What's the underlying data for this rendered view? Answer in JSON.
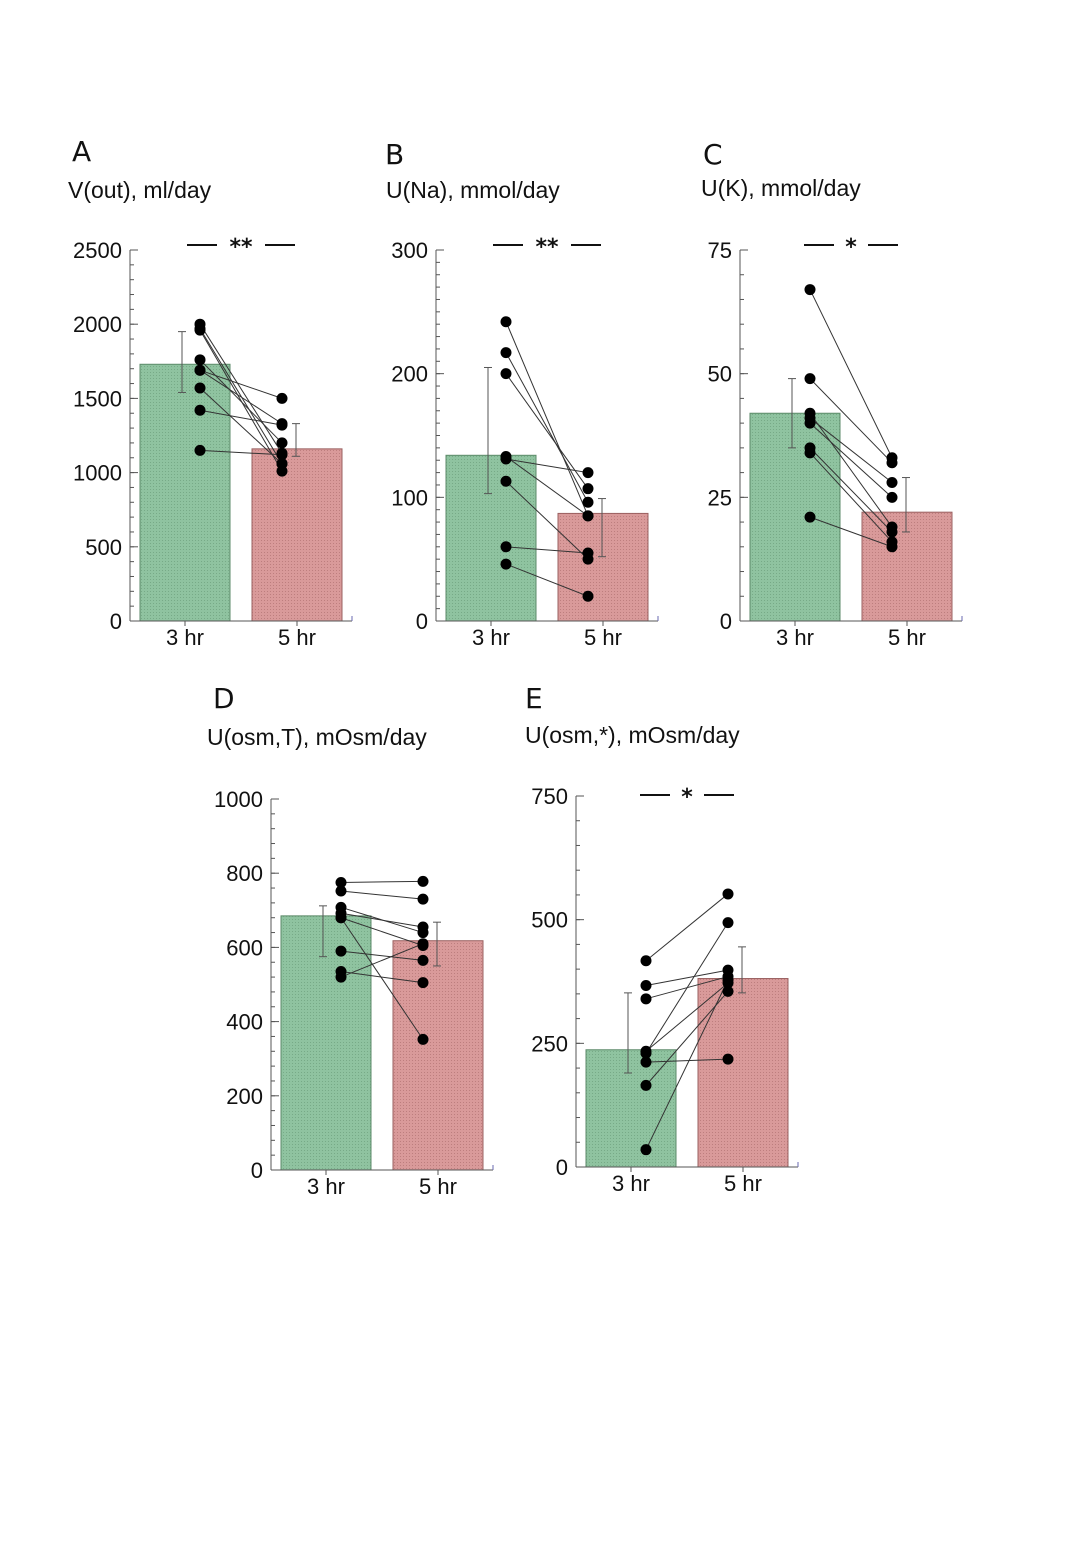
{
  "figure": {
    "colors": {
      "bar_3hr": "#8fc3a0",
      "bar_5hr": "#d99a9a",
      "bar_edge_3hr": "#5b8a68",
      "bar_edge_5hr": "#9a6060",
      "point": "#000000",
      "line": "#333333",
      "axis": "#555555",
      "axis_end": "#6a6ab0"
    }
  },
  "chart_data": [
    {
      "panel": "A",
      "type": "bar",
      "title": "V(out), ml/day",
      "categories": [
        "3 hr",
        "5 hr"
      ],
      "values": [
        1730,
        1160
      ],
      "error": [
        [
          1540,
          1950
        ],
        [
          1110,
          1330
        ]
      ],
      "ylim": [
        0,
        2500
      ],
      "yticks": [
        0,
        500,
        1000,
        1500,
        2000,
        2500
      ],
      "minor_step": 100,
      "significance": "**",
      "pairs": [
        [
          2000,
          1130
        ],
        [
          1960,
          1010
        ],
        [
          1970,
          1060
        ],
        [
          1760,
          1200
        ],
        [
          1690,
          1330
        ],
        [
          1570,
          1060
        ],
        [
          1420,
          1320
        ],
        [
          1150,
          1120
        ],
        [
          1690,
          1500
        ]
      ]
    },
    {
      "panel": "B",
      "type": "bar",
      "title": "U(Na), mmol/day",
      "categories": [
        "3 hr",
        "5 hr"
      ],
      "values": [
        134,
        87
      ],
      "error": [
        [
          103,
          205
        ],
        [
          52,
          99
        ]
      ],
      "ylim": [
        0,
        300
      ],
      "yticks": [
        0,
        100,
        200,
        300
      ],
      "minor_step": 10,
      "significance": "**",
      "pairs": [
        [
          242,
          85
        ],
        [
          217,
          96
        ],
        [
          200,
          107
        ],
        [
          133,
          85
        ],
        [
          131,
          120
        ],
        [
          113,
          50
        ],
        [
          60,
          55
        ],
        [
          46,
          20
        ]
      ]
    },
    {
      "panel": "C",
      "type": "bar",
      "title": "U(K), mmol/day",
      "categories": [
        "3 hr",
        "5 hr"
      ],
      "values": [
        42,
        22
      ],
      "error": [
        [
          35,
          49
        ],
        [
          18,
          29
        ]
      ],
      "ylim": [
        0,
        75
      ],
      "yticks": [
        0,
        25,
        50,
        75
      ],
      "minor_step": 5,
      "significance": "*",
      "pairs": [
        [
          67,
          33
        ],
        [
          49,
          32
        ],
        [
          42,
          19
        ],
        [
          41,
          28
        ],
        [
          40,
          25
        ],
        [
          35,
          18
        ],
        [
          34,
          16
        ],
        [
          21,
          15
        ]
      ]
    },
    {
      "panel": "D",
      "type": "bar",
      "title": "U(osm,T), mOsm/day",
      "categories": [
        "3 hr",
        "5 hr"
      ],
      "values": [
        685,
        618
      ],
      "error": [
        [
          575,
          712
        ],
        [
          550,
          668
        ]
      ],
      "ylim": [
        0,
        1000
      ],
      "yticks": [
        0,
        200,
        400,
        600,
        800,
        1000
      ],
      "minor_step": 40,
      "significance": "",
      "pairs": [
        [
          775,
          778
        ],
        [
          752,
          730
        ],
        [
          708,
          640
        ],
        [
          692,
          655
        ],
        [
          680,
          605
        ],
        [
          590,
          565
        ],
        [
          535,
          505
        ],
        [
          520,
          610
        ],
        [
          680,
          352
        ]
      ]
    },
    {
      "panel": "E",
      "type": "bar",
      "title": "U(osm,*), mOsm/day",
      "categories": [
        "3 hr",
        "5 hr"
      ],
      "values": [
        237,
        381
      ],
      "error": [
        [
          190,
          352
        ],
        [
          352,
          445
        ]
      ],
      "ylim": [
        0,
        750
      ],
      "yticks": [
        0,
        250,
        500,
        750
      ],
      "minor_step": 50,
      "significance": "*",
      "pairs": [
        [
          417,
          552
        ],
        [
          367,
          398
        ],
        [
          340,
          385
        ],
        [
          234,
          372
        ],
        [
          212,
          218
        ],
        [
          165,
          355
        ],
        [
          230,
          494
        ],
        [
          35,
          378
        ]
      ]
    }
  ]
}
